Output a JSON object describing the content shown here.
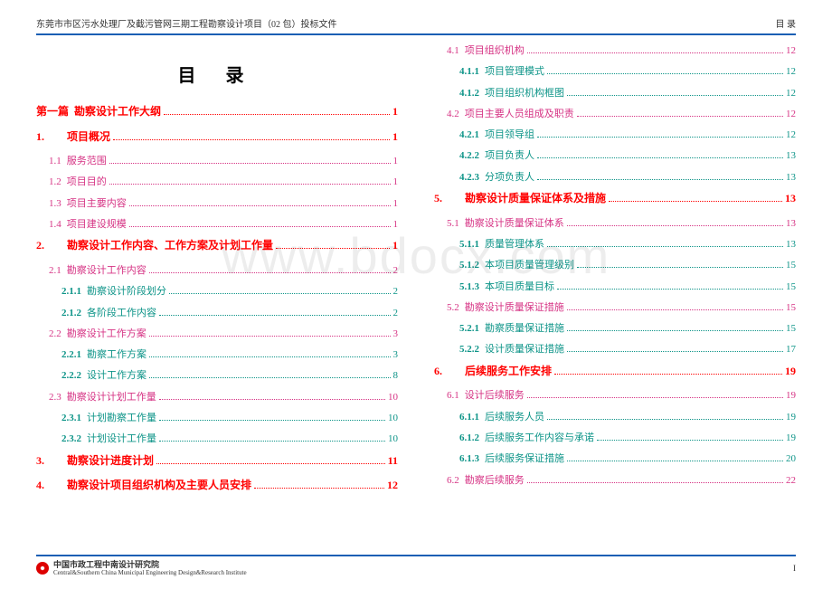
{
  "header": {
    "left": "东莞市市区污水处理厂及截污管网三期工程勘察设计项目（02 包）投标文件",
    "right": "目   录"
  },
  "tocTitle": "目   录",
  "watermark": "www.bdocx.com",
  "footer": {
    "cn": "中国市政工程中南设计研究院",
    "en": "Central&Southern China Municipal Engineering Design&Research Institute",
    "pageNum": "I"
  },
  "leftCol": [
    {
      "cls": "lvl-part",
      "num": "第一篇",
      "label": "勘察设计工作大纲",
      "page": "1"
    },
    {
      "cls": "lvl1",
      "num": "1.",
      "label": "项目概况",
      "page": "1"
    },
    {
      "cls": "lvl2",
      "num": "1.1",
      "label": "服务范围",
      "page": "1"
    },
    {
      "cls": "lvl2",
      "num": "1.2",
      "label": "项目目的",
      "page": "1"
    },
    {
      "cls": "lvl2",
      "num": "1.3",
      "label": "项目主要内容",
      "page": "1"
    },
    {
      "cls": "lvl2",
      "num": "1.4",
      "label": "项目建设规模",
      "page": "1"
    },
    {
      "cls": "lvl1",
      "num": "2.",
      "label": "勘察设计工作内容、工作方案及计划工作量",
      "page": "1"
    },
    {
      "cls": "lvl2",
      "num": "2.1",
      "label": "勘察设计工作内容",
      "page": "2"
    },
    {
      "cls": "lvl3",
      "num": "2.1.1",
      "label": "勘察设计阶段划分",
      "page": "2"
    },
    {
      "cls": "lvl3",
      "num": "2.1.2",
      "label": "各阶段工作内容",
      "page": "2"
    },
    {
      "cls": "lvl2",
      "num": "2.2",
      "label": "勘察设计工作方案",
      "page": "3"
    },
    {
      "cls": "lvl3",
      "num": "2.2.1",
      "label": "勘察工作方案",
      "page": "3"
    },
    {
      "cls": "lvl3",
      "num": "2.2.2",
      "label": "设计工作方案",
      "page": "8"
    },
    {
      "cls": "lvl2",
      "num": "2.3",
      "label": "勘察设计计划工作量",
      "page": "10"
    },
    {
      "cls": "lvl3",
      "num": "2.3.1",
      "label": "计划勘察工作量",
      "page": "10"
    },
    {
      "cls": "lvl3",
      "num": "2.3.2",
      "label": "计划设计工作量",
      "page": "10"
    },
    {
      "cls": "lvl1",
      "num": "3.",
      "label": "勘察设计进度计划",
      "page": "11"
    },
    {
      "cls": "lvl1",
      "num": "4.",
      "label": "勘察设计项目组织机构及主要人员安排",
      "page": "12"
    }
  ],
  "rightCol": [
    {
      "cls": "lvl2",
      "num": "4.1",
      "label": "项目组织机构",
      "page": "12"
    },
    {
      "cls": "lvl3",
      "num": "4.1.1",
      "label": "项目管理模式",
      "page": "12"
    },
    {
      "cls": "lvl3",
      "num": "4.1.2",
      "label": "项目组织机构框图",
      "page": "12"
    },
    {
      "cls": "lvl2",
      "num": "4.2",
      "label": "项目主要人员组成及职责",
      "page": "12"
    },
    {
      "cls": "lvl3",
      "num": "4.2.1",
      "label": "项目领导组",
      "page": "12"
    },
    {
      "cls": "lvl3",
      "num": "4.2.2",
      "label": "项目负责人",
      "page": "13"
    },
    {
      "cls": "lvl3",
      "num": "4.2.3",
      "label": "分项负责人",
      "page": "13"
    },
    {
      "cls": "lvl1",
      "num": "5.",
      "label": "勘察设计质量保证体系及措施",
      "page": "13"
    },
    {
      "cls": "lvl2",
      "num": "5.1",
      "label": "勘察设计质量保证体系",
      "page": "13"
    },
    {
      "cls": "lvl3",
      "num": "5.1.1",
      "label": "质量管理体系",
      "page": "13"
    },
    {
      "cls": "lvl3",
      "num": "5.1.2",
      "label": "本项目质量管理级别",
      "page": "15"
    },
    {
      "cls": "lvl3",
      "num": "5.1.3",
      "label": "本项目质量目标",
      "page": "15"
    },
    {
      "cls": "lvl2",
      "num": "5.2",
      "label": "勘察设计质量保证措施",
      "page": "15"
    },
    {
      "cls": "lvl3",
      "num": "5.2.1",
      "label": "勘察质量保证措施",
      "page": "15"
    },
    {
      "cls": "lvl3",
      "num": "5.2.2",
      "label": "设计质量保证措施",
      "page": "17"
    },
    {
      "cls": "lvl1",
      "num": "6.",
      "label": "后续服务工作安排",
      "page": "19"
    },
    {
      "cls": "lvl2",
      "num": "6.1",
      "label": "设计后续服务",
      "page": "19"
    },
    {
      "cls": "lvl3",
      "num": "6.1.1",
      "label": "后续服务人员",
      "page": "19"
    },
    {
      "cls": "lvl3",
      "num": "6.1.2",
      "label": "后续服务工作内容与承诺",
      "page": "19"
    },
    {
      "cls": "lvl3",
      "num": "6.1.3",
      "label": "后续服务保证措施",
      "page": "20"
    },
    {
      "cls": "lvl2",
      "num": "6.2",
      "label": "勘察后续服务",
      "page": "22"
    }
  ]
}
